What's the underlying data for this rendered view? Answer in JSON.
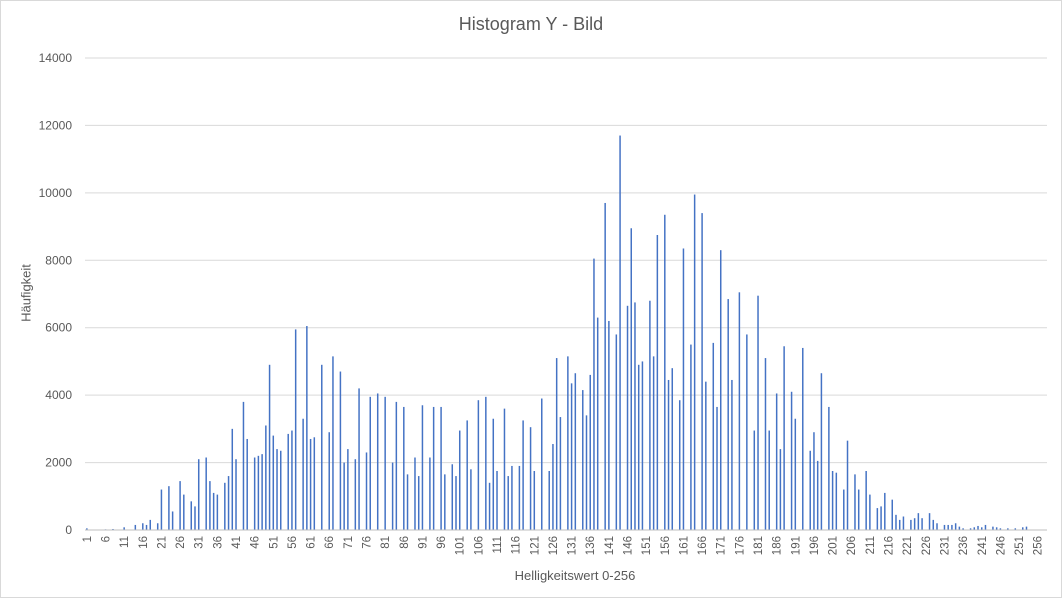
{
  "chart_data": {
    "type": "bar",
    "title": "Histogram Y - Bild",
    "xlabel": "Helligkeitswert 0-256",
    "ylabel": "Häufigkeit",
    "ylim": [
      0,
      14000
    ],
    "y_ticks": [
      "0",
      "2000",
      "4000",
      "6000",
      "8000",
      "10000",
      "12000",
      "14000"
    ],
    "x_tick_labels": [
      "1",
      "6",
      "11",
      "16",
      "21",
      "26",
      "31",
      "36",
      "41",
      "46",
      "51",
      "56",
      "61",
      "66",
      "71",
      "76",
      "81",
      "86",
      "91",
      "96",
      "101",
      "106",
      "111",
      "116",
      "121",
      "126",
      "131",
      "136",
      "141",
      "146",
      "151",
      "156",
      "161",
      "166",
      "171",
      "176",
      "181",
      "186",
      "191",
      "196",
      "201",
      "206",
      "211",
      "216",
      "221",
      "226",
      "231",
      "236",
      "241",
      "246",
      "251",
      "256"
    ],
    "grid": true,
    "legend": "none",
    "series_color": "#4472c4",
    "categories_start": 1,
    "values": [
      50,
      0,
      0,
      0,
      0,
      20,
      0,
      30,
      0,
      0,
      80,
      0,
      0,
      150,
      0,
      200,
      150,
      300,
      0,
      200,
      1200,
      0,
      1300,
      550,
      0,
      1450,
      1050,
      0,
      850,
      700,
      2100,
      0,
      2150,
      1450,
      1100,
      1050,
      0,
      1400,
      1600,
      3000,
      2100,
      0,
      3800,
      2700,
      0,
      2150,
      2200,
      2250,
      3100,
      4900,
      2800,
      2400,
      2350,
      0,
      2850,
      2950,
      5950,
      0,
      3300,
      6050,
      2700,
      2750,
      0,
      4900,
      0,
      2900,
      5150,
      0,
      4700,
      2000,
      2400,
      0,
      2100,
      4200,
      0,
      2300,
      3950,
      0,
      4050,
      0,
      3950,
      0,
      2000,
      3800,
      0,
      3650,
      1650,
      0,
      2150,
      1600,
      3700,
      0,
      2150,
      3650,
      0,
      3650,
      1650,
      0,
      1950,
      1600,
      2950,
      0,
      3250,
      1800,
      0,
      3850,
      0,
      3950,
      1400,
      3300,
      1750,
      0,
      3600,
      1600,
      1900,
      0,
      1900,
      3250,
      0,
      3050,
      1750,
      0,
      3900,
      0,
      1750,
      2550,
      5100,
      3350,
      0,
      5150,
      4350,
      4650,
      0,
      4150,
      3400,
      4600,
      8050,
      6300,
      0,
      9700,
      6200,
      0,
      5800,
      11700,
      0,
      6650,
      8950,
      6750,
      4900,
      5000,
      0,
      6800,
      5150,
      8750,
      0,
      9350,
      4450,
      4800,
      0,
      3850,
      8350,
      0,
      5500,
      9950,
      0,
      9400,
      4400,
      0,
      5550,
      3650,
      8300,
      0,
      6850,
      4450,
      0,
      7050,
      0,
      5800,
      0,
      2950,
      6950,
      0,
      5100,
      2950,
      0,
      4050,
      2400,
      5450,
      0,
      4100,
      3300,
      0,
      5400,
      0,
      2350,
      2900,
      2050,
      4650,
      0,
      3650,
      1750,
      1700,
      0,
      1200,
      2650,
      0,
      1650,
      1200,
      0,
      1750,
      1050,
      0,
      650,
      700,
      1100,
      0,
      900,
      450,
      300,
      400,
      0,
      300,
      350,
      500,
      350,
      0,
      500,
      300,
      200,
      0,
      150,
      150,
      150,
      200,
      100,
      50,
      0,
      50,
      80,
      120,
      80,
      150,
      0,
      100,
      80,
      50,
      0,
      50,
      0,
      50,
      0,
      80,
      100,
      0,
      0,
      0,
      0,
      0
    ]
  }
}
